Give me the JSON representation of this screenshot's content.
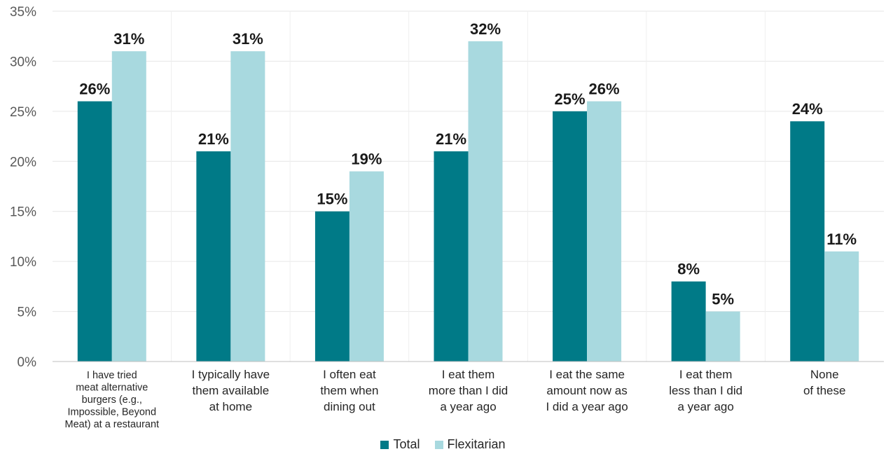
{
  "chart_data": {
    "type": "bar",
    "title": "",
    "xlabel": "",
    "ylabel": "",
    "ylim": [
      0,
      35
    ],
    "yticks": [
      "0%",
      "5%",
      "10%",
      "15%",
      "20%",
      "25%",
      "30%",
      "35%"
    ],
    "grid": true,
    "legend_position": "bottom",
    "categories": [
      [
        "I have tried",
        "meat alternative",
        "burgers (e.g.,",
        "Impossible, Beyond",
        "Meat) at a restaurant"
      ],
      [
        "I typically have",
        "them available",
        "at home"
      ],
      [
        "I often eat",
        "them when",
        "dining out"
      ],
      [
        "I eat them",
        "more than I did",
        "a year ago"
      ],
      [
        "I eat the same",
        "amount now as",
        "I did a year ago"
      ],
      [
        "I eat them",
        "less than I did",
        "a year ago"
      ],
      [
        "None",
        "of these"
      ]
    ],
    "series": [
      {
        "name": "Total",
        "color": "#007a87",
        "values": [
          26,
          21,
          15,
          21,
          25,
          8,
          24
        ],
        "labels": [
          "26%",
          "21%",
          "15%",
          "21%",
          "25%",
          "8%",
          "24%"
        ]
      },
      {
        "name": "Flexitarian",
        "color": "#a8d9df",
        "values": [
          31,
          31,
          19,
          32,
          26,
          5,
          11
        ],
        "labels": [
          "31%",
          "31%",
          "19%",
          "32%",
          "26%",
          "5%",
          "11%"
        ]
      }
    ]
  },
  "legend": {
    "items": [
      {
        "label": "Total",
        "color": "#007a87"
      },
      {
        "label": "Flexitarian",
        "color": "#a8d9df"
      }
    ]
  }
}
